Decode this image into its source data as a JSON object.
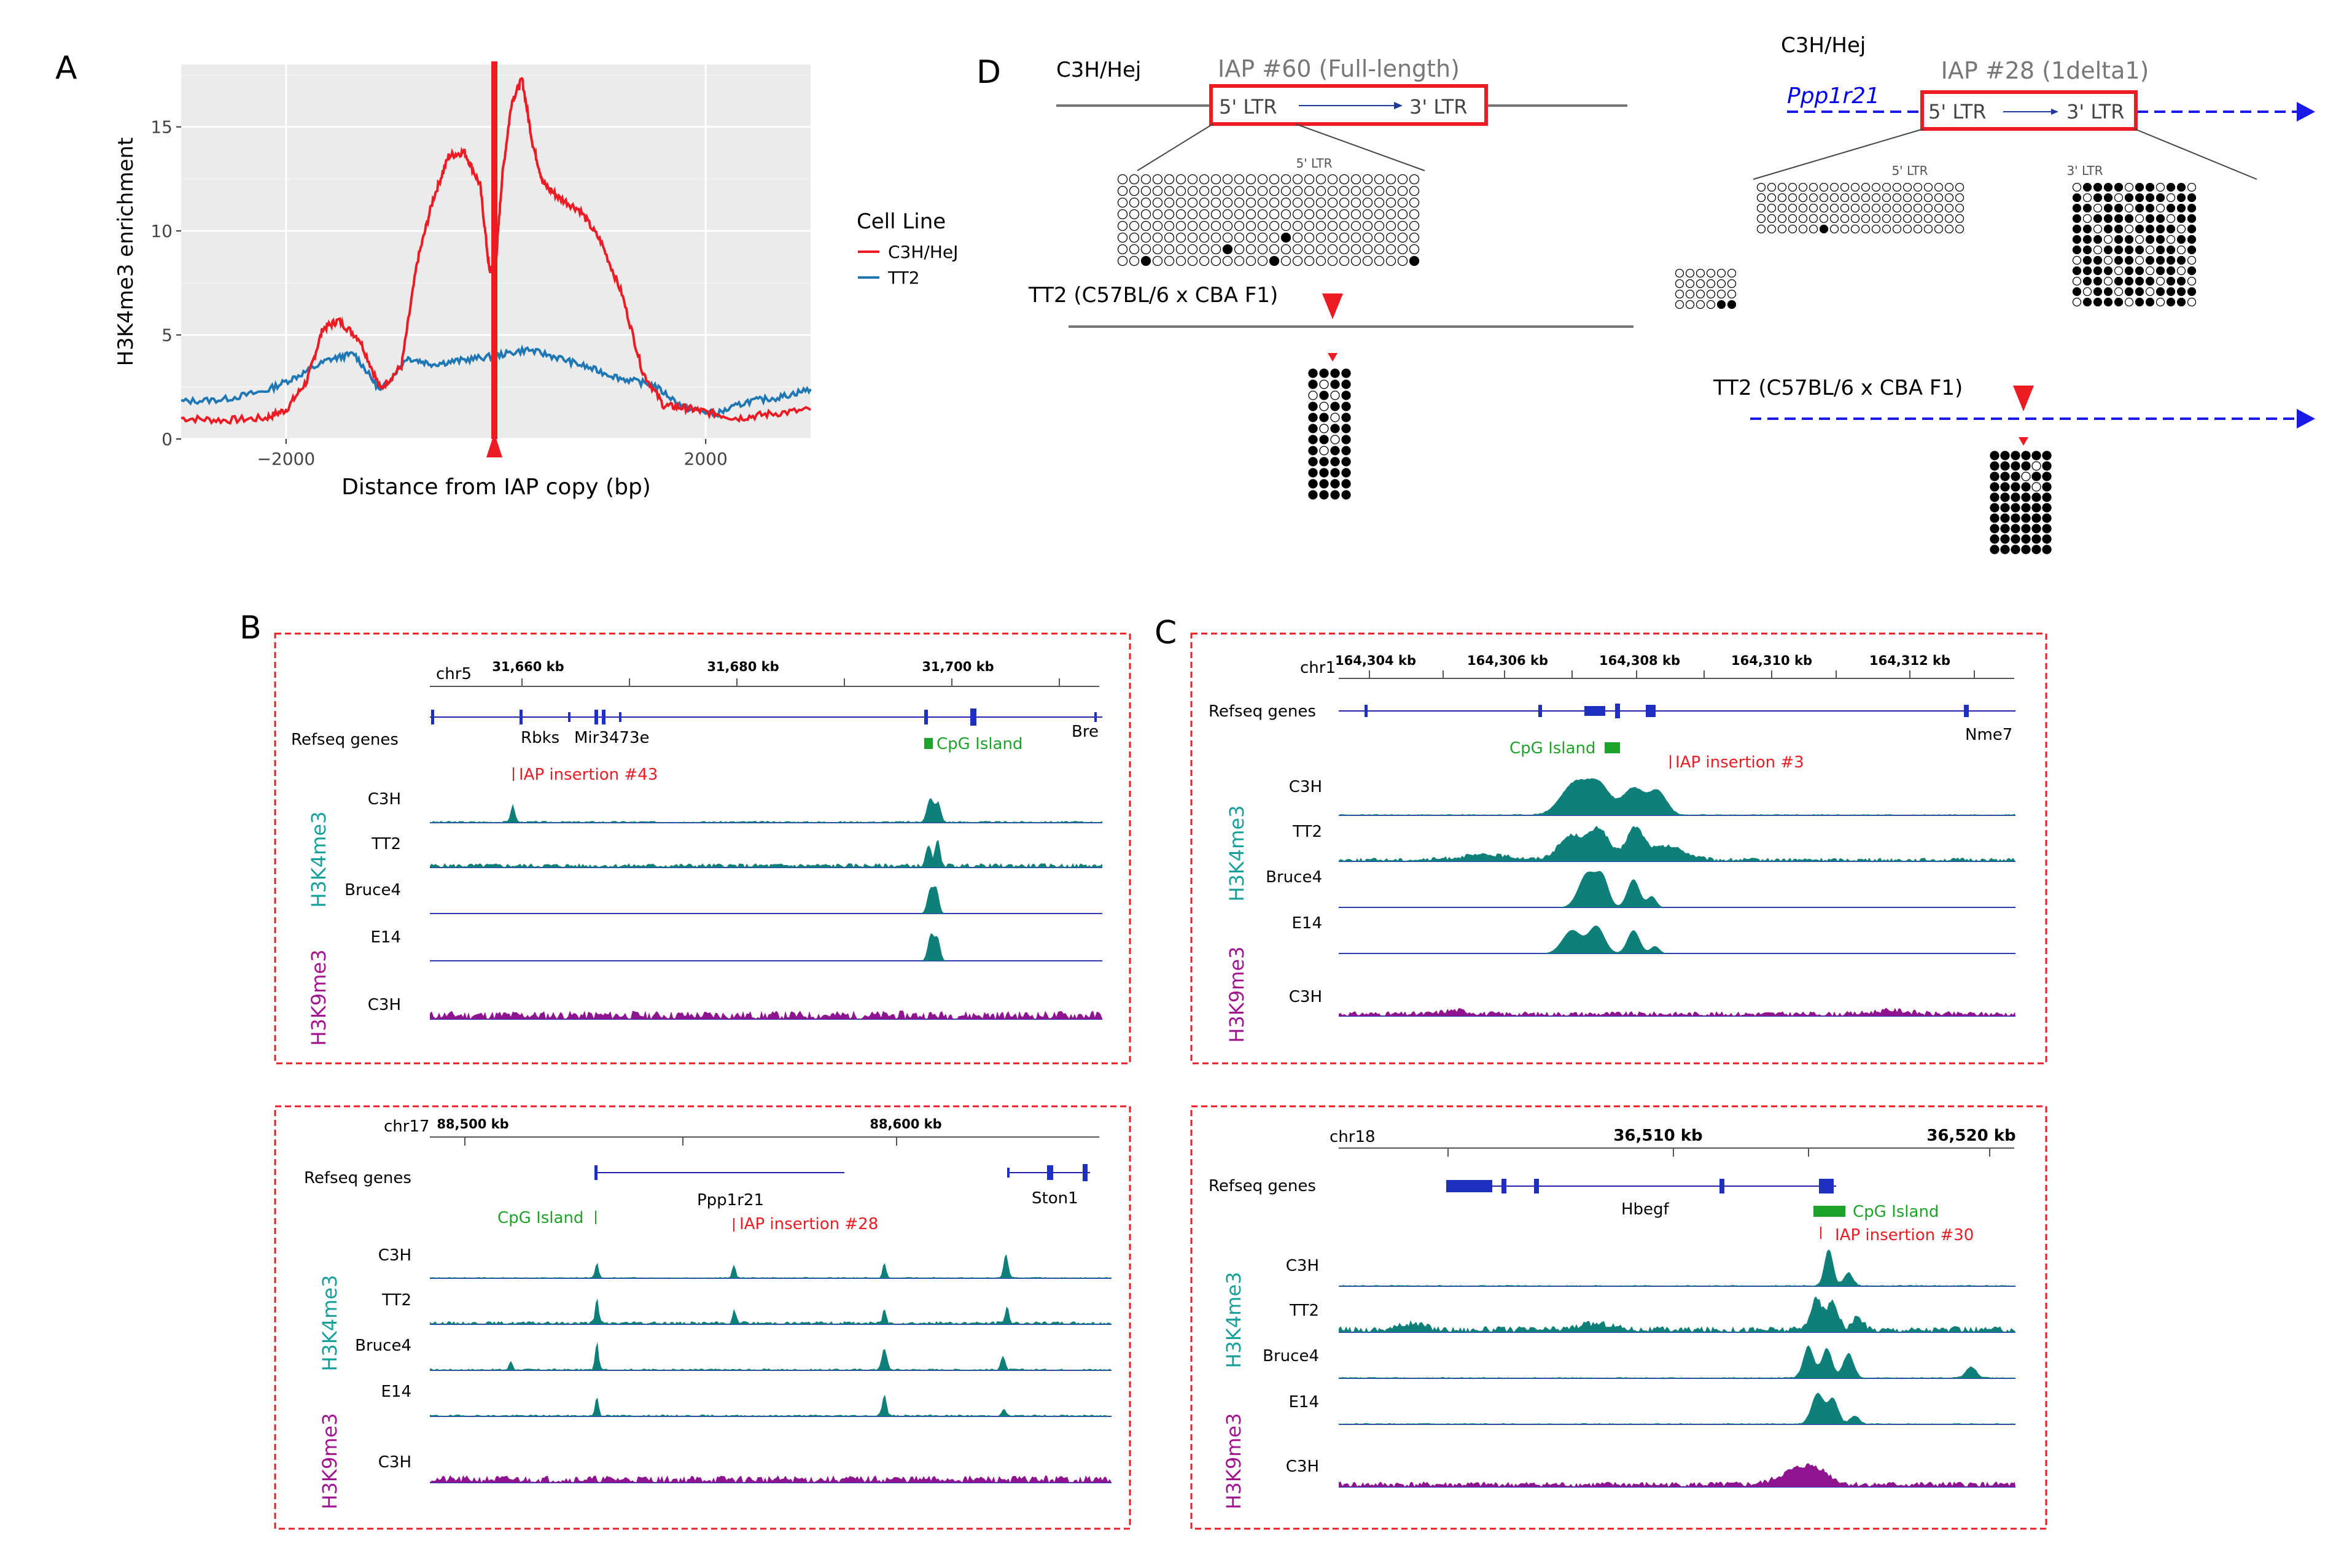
{
  "panels": {
    "A": "A",
    "B": "B",
    "C": "C",
    "D": "D"
  },
  "panelA": {
    "ylabel": "H3K4me3 enrichment",
    "xlabel": "Distance from IAP copy (bp)",
    "legend_title": "Cell Line",
    "legend_items": [
      "C3H/HeJ",
      "TT2"
    ]
  },
  "chart_data": {
    "type": "line",
    "title": "",
    "xlabel": "Distance from IAP copy (bp)",
    "ylabel": "H3K4me3 enrichment",
    "xlim": [
      -3000,
      3000
    ],
    "ylim": [
      0,
      18
    ],
    "xticks": [
      -2000,
      2000
    ],
    "yticks": [
      0,
      5,
      10,
      15
    ],
    "xtick_labels": [
      "−2000",
      "2000"
    ],
    "ytick_labels": [
      "0",
      "5",
      "10",
      "15"
    ],
    "legend": "right",
    "series": [
      {
        "name": "C3H/HeJ",
        "color": "#ed1c24",
        "x": [
          -3000,
          -2600,
          -2200,
          -2000,
          -1800,
          -1650,
          -1500,
          -1300,
          -1100,
          -900,
          -750,
          -600,
          -450,
          -300,
          -150,
          -60,
          0,
          60,
          150,
          250,
          350,
          450,
          600,
          800,
          1000,
          1200,
          1400,
          1600,
          1800,
          2000,
          2300,
          2600,
          3000
        ],
        "y": [
          1.0,
          0.9,
          1.0,
          1.4,
          2.8,
          5.3,
          5.7,
          4.8,
          2.4,
          3.5,
          8.5,
          11.5,
          13.6,
          13.8,
          12.2,
          8.0,
          8.5,
          12.6,
          16.2,
          17.3,
          14.2,
          12.3,
          11.6,
          11.0,
          9.5,
          7.0,
          3.2,
          1.6,
          1.5,
          1.3,
          1.0,
          1.2,
          1.4
        ]
      },
      {
        "name": "TT2",
        "color": "#1f78b4",
        "x": [
          -3000,
          -2600,
          -2200,
          -1900,
          -1600,
          -1350,
          -1100,
          -850,
          -600,
          -300,
          0,
          300,
          600,
          900,
          1200,
          1500,
          1800,
          2100,
          2400,
          2700,
          3000
        ],
        "y": [
          1.8,
          1.9,
          2.3,
          3.0,
          3.8,
          4.1,
          2.3,
          3.9,
          3.6,
          3.8,
          4.0,
          4.3,
          3.9,
          3.4,
          2.9,
          2.6,
          1.5,
          1.2,
          1.8,
          2.0,
          2.4
        ]
      }
    ]
  },
  "panelB1": {
    "chrom": "chr5",
    "ticks": [
      "31,660 kb",
      "31,680 kb",
      "31,700 kb"
    ],
    "refseq": "Refseq genes",
    "genes": [
      "Rbks",
      "Mir3473e",
      "Bre"
    ],
    "cpg": "CpG Island",
    "iap": "IAP insertion #43",
    "group1": "H3K4me3",
    "group2": "H3K9me3",
    "tracks": [
      "C3H",
      "TT2",
      "Bruce4",
      "E14",
      "C3H"
    ]
  },
  "panelB2": {
    "chrom": "chr17",
    "ticks": [
      "88,500 kb",
      "88,600 kb"
    ],
    "refseq": "Refseq genes",
    "genes": [
      "Ppp1r21",
      "Ston1"
    ],
    "cpg": "CpG Island",
    "iap": "IAP insertion #28",
    "group1": "H3K4me3",
    "group2": "H3K9me3",
    "tracks": [
      "C3H",
      "TT2",
      "Bruce4",
      "E14",
      "C3H"
    ]
  },
  "panelC1": {
    "chrom": "chr1",
    "ticks": [
      "164,304 kb",
      "164,306 kb",
      "164,308 kb",
      "164,310 kb",
      "164,312 kb"
    ],
    "refseq": "Refseq genes",
    "genes": [
      "Nme7"
    ],
    "cpg": "CpG Island",
    "iap": "IAP insertion #3",
    "group1": "H3K4me3",
    "group2": "H3K9me3",
    "tracks": [
      "C3H",
      "TT2",
      "Bruce4",
      "E14",
      "C3H"
    ]
  },
  "panelC2": {
    "chrom": "chr18",
    "ticks": [
      "36,510 kb",
      "36,520 kb"
    ],
    "refseq": "Refseq genes",
    "genes": [
      "Hbegf"
    ],
    "cpg": "CpG Island",
    "iap": "IAP insertion #30",
    "group1": "H3K4me3",
    "group2": "H3K9me3",
    "tracks": [
      "C3H",
      "TT2",
      "Bruce4",
      "E14",
      "C3H"
    ]
  },
  "panelD": {
    "left": {
      "strain": "C3H/Hej",
      "iap_title": "IAP #60 (Full-length)",
      "ltr5": "5' LTR",
      "ltr3": "3' LTR",
      "small_ltr": "5' LTR",
      "tt2": "TT2 (C57BL/6 x CBA F1)"
    },
    "right": {
      "strain": "C3H/Hej",
      "gene": "Ppp1r21",
      "iap_title": "IAP #28 (1delta1)",
      "ltr5": "5' LTR",
      "ltr3": "3' LTR",
      "small_ltr5": "5' LTR",
      "small_ltr3": "3' LTR",
      "tt2": "TT2 (C57BL/6 x CBA F1)"
    }
  }
}
